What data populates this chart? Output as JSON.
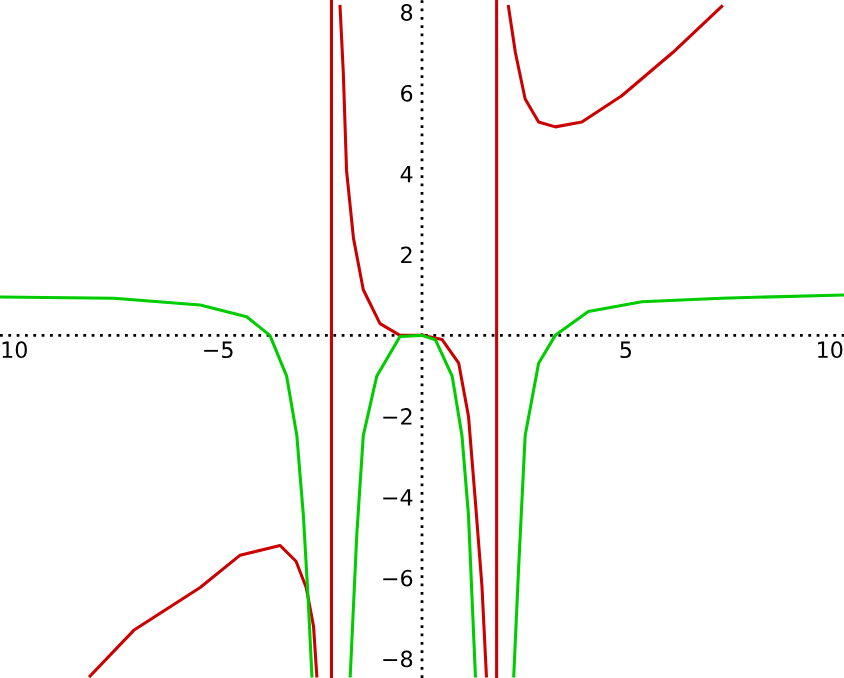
{
  "chart_data": {
    "type": "line",
    "xlim": [
      -10.35,
      10.35
    ],
    "ylim": [
      -8.48,
      8.3
    ],
    "xticks": [
      {
        "value": -10,
        "label": "10"
      },
      {
        "value": -5,
        "label": "−5"
      },
      5,
      10
    ],
    "yticks": [
      {
        "value": -8,
        "label": "−8"
      },
      {
        "value": -6,
        "label": "−6"
      },
      {
        "value": -4,
        "label": "−4"
      },
      {
        "value": -2,
        "label": "−2"
      },
      2,
      4,
      6,
      8
    ],
    "grid": false,
    "legend": false,
    "marker": "none",
    "line_style": "solid",
    "series": [
      {
        "color": "#cc0000",
        "x": [
          -8.14,
          -7.07,
          -5.44,
          -4.46,
          -3.48,
          -3.09,
          -2.84,
          -2.66,
          -2.58
        ],
        "values": [
          -8.43,
          -7.3,
          -6.24,
          -5.44,
          -5.2,
          -5.59,
          -6.24,
          -7.2,
          -8.43
        ]
      },
      {
        "color": "#cc0000",
        "x": [
          -2.01,
          -1.93,
          -1.85,
          -1.68,
          -1.44,
          -1.03,
          -0.54,
          0,
          0.49,
          0.9,
          1.14,
          1.31,
          1.47,
          1.58
        ],
        "values": [
          8.14,
          6.5,
          4.07,
          2.4,
          1.13,
          0.29,
          0,
          0,
          -0.1,
          -0.69,
          -2.0,
          -4.12,
          -6.2,
          -8.43
        ]
      },
      {
        "color": "#cc0000",
        "x": [
          2.12,
          2.29,
          2.53,
          2.86,
          3.27,
          3.92,
          4.9,
          6.15,
          7.35
        ],
        "values": [
          8.14,
          7.0,
          5.85,
          5.28,
          5.16,
          5.28,
          5.93,
          7.0,
          8.14
        ]
      },
      {
        "color": "#00cc00",
        "x": [
          -10.34,
          -7.56,
          -5.44,
          -4.3,
          -3.73,
          -3.32,
          -3.07,
          -2.91,
          -2.79,
          -2.7
        ],
        "values": [
          0.95,
          0.92,
          0.75,
          0.46,
          0,
          -1.01,
          -2.48,
          -4.45,
          -6.57,
          -8.43
        ]
      },
      {
        "color": "#00cc00",
        "x": [
          -1.76,
          -1.6,
          -1.44,
          -1.11,
          -0.54,
          0,
          0.33,
          0.74,
          0.98,
          1.14,
          1.31
        ],
        "values": [
          -8.43,
          -4.94,
          -2.48,
          -1.01,
          -0.03,
          0,
          -0.11,
          -1.01,
          -2.48,
          -4.45,
          -8.43
        ]
      },
      {
        "color": "#00cc00",
        "x": [
          2.25,
          2.37,
          2.53,
          2.86,
          3.27,
          4.08,
          5.39,
          7.35,
          10.34
        ],
        "values": [
          -8.43,
          -5.75,
          -2.48,
          -0.69,
          0,
          0.59,
          0.83,
          0.92,
          1.0
        ]
      }
    ],
    "ref_lines": [
      {
        "axis": "x",
        "value": -2.22,
        "color": "#cc0000"
      },
      {
        "axis": "x",
        "value": 1.83,
        "color": "#cc0000"
      },
      {
        "axis": "x",
        "value": 0,
        "color": "#000000",
        "line_style": "dotted"
      },
      {
        "axis": "y",
        "value": 0,
        "color": "#000000",
        "line_style": "dotted"
      }
    ]
  }
}
